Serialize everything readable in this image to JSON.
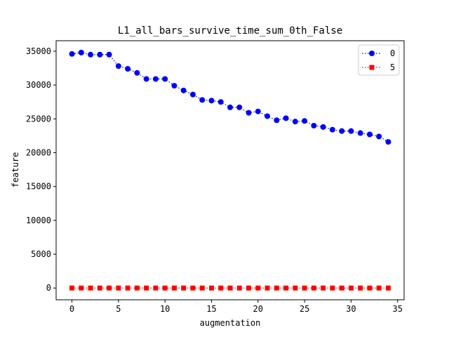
{
  "chart_data": {
    "type": "line",
    "title": "L1_all_bars_survive_time_sum_0th_False",
    "xlabel": "augmentation",
    "ylabel": "feature",
    "xlim": [
      -1.7,
      35.7
    ],
    "ylim": [
      -1740,
      36550
    ],
    "xticks": [
      0,
      5,
      10,
      15,
      20,
      25,
      30,
      35
    ],
    "xtick_labels": [
      "0",
      "5",
      "10",
      "15",
      "20",
      "25",
      "30",
      "35"
    ],
    "yticks": [
      0,
      5000,
      10000,
      15000,
      20000,
      25000,
      30000,
      35000
    ],
    "ytick_labels": [
      "0",
      "5000",
      "10000",
      "15000",
      "20000",
      "25000",
      "30000",
      "35000"
    ],
    "grid": false,
    "legend_position": "upper-right",
    "x": [
      0,
      1,
      2,
      3,
      4,
      5,
      6,
      7,
      8,
      9,
      10,
      11,
      12,
      13,
      14,
      15,
      16,
      17,
      18,
      19,
      20,
      21,
      22,
      23,
      24,
      25,
      26,
      27,
      28,
      29,
      30,
      31,
      32,
      33,
      34
    ],
    "series": [
      {
        "name": "0",
        "color": "#0000ff",
        "marker": "circle",
        "linestyle": "dotted",
        "values": [
          34600,
          34800,
          34500,
          34500,
          34500,
          32800,
          32400,
          31800,
          30900,
          30900,
          30900,
          29900,
          29200,
          28600,
          27800,
          27700,
          27500,
          26700,
          26700,
          25900,
          26100,
          25400,
          24800,
          25100,
          24600,
          24700,
          24000,
          23800,
          23400,
          23200,
          23200,
          22900,
          22700,
          22400,
          21600
        ]
      },
      {
        "name": "5",
        "color": "#ff0000",
        "marker": "square",
        "linestyle": "dotted",
        "values": [
          0,
          0,
          0,
          0,
          0,
          0,
          0,
          0,
          0,
          0,
          0,
          0,
          0,
          0,
          0,
          0,
          0,
          0,
          0,
          0,
          0,
          0,
          0,
          0,
          0,
          0,
          0,
          0,
          0,
          0,
          0,
          0,
          0,
          0,
          0
        ]
      }
    ]
  }
}
